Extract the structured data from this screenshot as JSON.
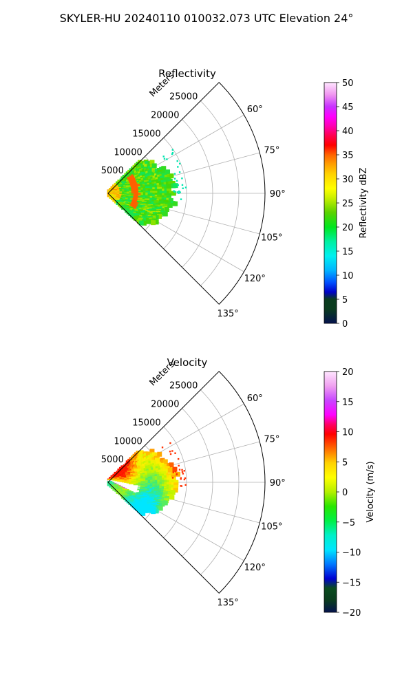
{
  "suptitle": "SKYLER-HU  20240110  010032.073 UTC Elevation 24°",
  "chart_data": [
    {
      "type": "polar-sector",
      "title": "Reflectivity",
      "range_label": "Meters",
      "range_ticks": [
        "5000",
        "10000",
        "15000",
        "20000",
        "25000"
      ],
      "range_tick_values": [
        5000,
        10000,
        15000,
        20000,
        25000
      ],
      "range_max_m": 30000,
      "azimuth_ticks": [
        "60°",
        "75°",
        "90°",
        "105°",
        "120°",
        "135°"
      ],
      "azimuth_tick_values": [
        60,
        75,
        90,
        105,
        120,
        135
      ],
      "azimuth_range_deg": [
        45,
        135
      ],
      "grid": true,
      "data_extent_m": 13000,
      "colorbar": {
        "label": "Reflectivity dBZ",
        "min": 0,
        "max": 50,
        "ticks": [
          "0",
          "5",
          "10",
          "15",
          "20",
          "25",
          "30",
          "35",
          "40",
          "45",
          "50"
        ],
        "tick_values": [
          0,
          5,
          10,
          15,
          20,
          25,
          30,
          35,
          40,
          45,
          50
        ]
      }
    },
    {
      "type": "polar-sector",
      "title": "Velocity",
      "range_label": "Meters",
      "range_ticks": [
        "5000",
        "10000",
        "15000",
        "20000",
        "25000"
      ],
      "range_tick_values": [
        5000,
        10000,
        15000,
        20000,
        25000
      ],
      "range_max_m": 30000,
      "azimuth_ticks": [
        "60°",
        "75°",
        "90°",
        "105°",
        "120°",
        "135°"
      ],
      "azimuth_tick_values": [
        60,
        75,
        90,
        105,
        120,
        135
      ],
      "azimuth_range_deg": [
        45,
        135
      ],
      "grid": true,
      "data_extent_m": 13000,
      "colorbar": {
        "label": "Velocity (m/s)",
        "min": -20,
        "max": 20,
        "ticks": [
          "−20",
          "−15",
          "−10",
          "−5",
          "0",
          "5",
          "10",
          "15",
          "20"
        ],
        "tick_values": [
          -20,
          -15,
          -10,
          -5,
          0,
          5,
          10,
          15,
          20
        ]
      }
    }
  ]
}
